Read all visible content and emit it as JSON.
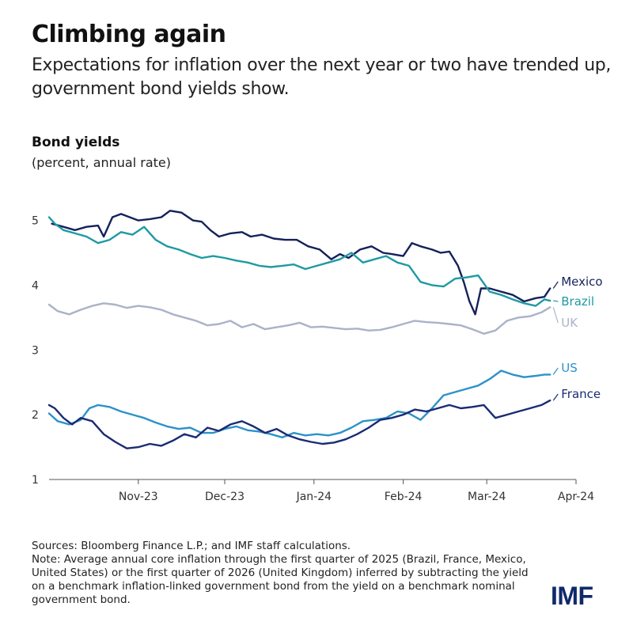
{
  "header": {
    "title": "Climbing again",
    "subtitle": "Expectations for inflation over the next year or two have trended up, government bond yields show."
  },
  "chart_data": {
    "type": "line",
    "title": "Bond yields",
    "subtitle": "(percent, annual rate)",
    "xlabel": "",
    "ylabel": "",
    "x_ticks": [
      "Nov-23",
      "Dec-23",
      "Jan-24",
      "Feb-24",
      "Mar-24",
      "Apr-24"
    ],
    "x_range": [
      "2023-10-01",
      "2024-04-01"
    ],
    "y_ticks": [
      1,
      2,
      3,
      4,
      5
    ],
    "ylim": [
      1,
      5.3
    ],
    "grid": false,
    "legend": "direct labels at right end of lines",
    "series": [
      {
        "name": "Mexico",
        "color": "#14215a",
        "x": [
          "2023-10-02",
          "2023-10-06",
          "2023-10-10",
          "2023-10-14",
          "2023-10-18",
          "2023-10-20",
          "2023-10-23",
          "2023-10-26",
          "2023-10-29",
          "2023-11-01",
          "2023-11-05",
          "2023-11-09",
          "2023-11-12",
          "2023-11-16",
          "2023-11-20",
          "2023-11-23",
          "2023-11-26",
          "2023-11-29",
          "2023-12-03",
          "2023-12-07",
          "2023-12-10",
          "2023-12-14",
          "2023-12-18",
          "2023-12-22",
          "2023-12-26",
          "2023-12-30",
          "2024-01-03",
          "2024-01-07",
          "2024-01-10",
          "2024-01-13",
          "2024-01-17",
          "2024-01-21",
          "2024-01-25",
          "2024-01-28",
          "2024-02-01",
          "2024-02-04",
          "2024-02-07",
          "2024-02-11",
          "2024-02-14",
          "2024-02-17",
          "2024-02-20",
          "2024-02-22",
          "2024-02-24",
          "2024-02-26",
          "2024-02-28",
          "2024-03-02",
          "2024-03-06",
          "2024-03-10",
          "2024-03-14",
          "2024-03-18",
          "2024-03-21",
          "2024-03-23"
        ],
        "values": [
          4.95,
          4.9,
          4.85,
          4.9,
          4.92,
          4.75,
          5.05,
          5.1,
          5.05,
          5.0,
          5.02,
          5.05,
          5.15,
          5.12,
          5.0,
          4.98,
          4.85,
          4.75,
          4.8,
          4.82,
          4.75,
          4.78,
          4.72,
          4.7,
          4.7,
          4.6,
          4.55,
          4.4,
          4.48,
          4.42,
          4.55,
          4.6,
          4.5,
          4.48,
          4.45,
          4.65,
          4.6,
          4.55,
          4.5,
          4.52,
          4.3,
          4.05,
          3.75,
          3.55,
          3.95,
          3.95,
          3.9,
          3.85,
          3.75,
          3.8,
          3.82,
          3.95
        ]
      },
      {
        "name": "Brazil",
        "color": "#1e9aa3",
        "x": [
          "2023-10-01",
          "2023-10-03",
          "2023-10-06",
          "2023-10-10",
          "2023-10-14",
          "2023-10-18",
          "2023-10-22",
          "2023-10-26",
          "2023-10-30",
          "2023-11-03",
          "2023-11-07",
          "2023-11-11",
          "2023-11-15",
          "2023-11-19",
          "2023-11-23",
          "2023-11-27",
          "2023-12-01",
          "2023-12-05",
          "2023-12-09",
          "2023-12-13",
          "2023-12-17",
          "2023-12-21",
          "2023-12-25",
          "2023-12-29",
          "2024-01-02",
          "2024-01-06",
          "2024-01-10",
          "2024-01-14",
          "2024-01-18",
          "2024-01-22",
          "2024-01-26",
          "2024-01-30",
          "2024-02-03",
          "2024-02-07",
          "2024-02-11",
          "2024-02-15",
          "2024-02-19",
          "2024-02-23",
          "2024-02-27",
          "2024-03-02",
          "2024-03-06",
          "2024-03-10",
          "2024-03-14",
          "2024-03-18",
          "2024-03-21",
          "2024-03-23"
        ],
        "values": [
          5.05,
          4.95,
          4.85,
          4.8,
          4.75,
          4.65,
          4.7,
          4.82,
          4.78,
          4.9,
          4.7,
          4.6,
          4.55,
          4.48,
          4.42,
          4.45,
          4.42,
          4.38,
          4.35,
          4.3,
          4.28,
          4.3,
          4.32,
          4.25,
          4.3,
          4.35,
          4.4,
          4.5,
          4.35,
          4.4,
          4.45,
          4.35,
          4.3,
          4.05,
          4.0,
          3.98,
          4.1,
          4.12,
          4.15,
          3.9,
          3.85,
          3.78,
          3.72,
          3.68,
          3.78,
          3.76
        ]
      },
      {
        "name": "UK",
        "color": "#aab2c8",
        "x": [
          "2023-10-01",
          "2023-10-04",
          "2023-10-08",
          "2023-10-12",
          "2023-10-16",
          "2023-10-20",
          "2023-10-24",
          "2023-10-28",
          "2023-11-01",
          "2023-11-05",
          "2023-11-09",
          "2023-11-13",
          "2023-11-17",
          "2023-11-21",
          "2023-11-25",
          "2023-11-29",
          "2023-12-03",
          "2023-12-07",
          "2023-12-11",
          "2023-12-15",
          "2023-12-19",
          "2023-12-23",
          "2023-12-27",
          "2023-12-31",
          "2024-01-04",
          "2024-01-08",
          "2024-01-12",
          "2024-01-16",
          "2024-01-20",
          "2024-01-24",
          "2024-01-28",
          "2024-02-01",
          "2024-02-05",
          "2024-02-09",
          "2024-02-13",
          "2024-02-17",
          "2024-02-21",
          "2024-02-25",
          "2024-02-29",
          "2024-03-04",
          "2024-03-08",
          "2024-03-12",
          "2024-03-16",
          "2024-03-20",
          "2024-03-23"
        ],
        "values": [
          3.7,
          3.6,
          3.55,
          3.62,
          3.68,
          3.72,
          3.7,
          3.65,
          3.68,
          3.66,
          3.62,
          3.55,
          3.5,
          3.45,
          3.38,
          3.4,
          3.45,
          3.35,
          3.4,
          3.32,
          3.35,
          3.38,
          3.42,
          3.35,
          3.36,
          3.34,
          3.32,
          3.33,
          3.3,
          3.31,
          3.35,
          3.4,
          3.45,
          3.43,
          3.42,
          3.4,
          3.38,
          3.32,
          3.25,
          3.3,
          3.45,
          3.5,
          3.52,
          3.58,
          3.66
        ]
      },
      {
        "name": "US",
        "color": "#2c92c9",
        "x": [
          "2023-10-01",
          "2023-10-04",
          "2023-10-08",
          "2023-10-12",
          "2023-10-15",
          "2023-10-18",
          "2023-10-22",
          "2023-10-26",
          "2023-10-30",
          "2023-11-03",
          "2023-11-07",
          "2023-11-11",
          "2023-11-15",
          "2023-11-19",
          "2023-11-23",
          "2023-11-27",
          "2023-12-01",
          "2023-12-05",
          "2023-12-09",
          "2023-12-13",
          "2023-12-17",
          "2023-12-21",
          "2023-12-25",
          "2023-12-29",
          "2024-01-02",
          "2024-01-06",
          "2024-01-10",
          "2024-01-14",
          "2024-01-18",
          "2024-01-22",
          "2024-01-26",
          "2024-01-30",
          "2024-02-03",
          "2024-02-07",
          "2024-02-11",
          "2024-02-15",
          "2024-02-19",
          "2024-02-23",
          "2024-02-27",
          "2024-03-02",
          "2024-03-06",
          "2024-03-10",
          "2024-03-14",
          "2024-03-18",
          "2024-03-21",
          "2024-03-23"
        ],
        "values": [
          2.02,
          1.9,
          1.85,
          1.92,
          2.1,
          2.15,
          2.12,
          2.05,
          2.0,
          1.95,
          1.88,
          1.82,
          1.78,
          1.8,
          1.72,
          1.72,
          1.78,
          1.82,
          1.76,
          1.74,
          1.7,
          1.65,
          1.72,
          1.68,
          1.7,
          1.68,
          1.72,
          1.8,
          1.9,
          1.92,
          1.95,
          2.05,
          2.02,
          1.92,
          2.1,
          2.3,
          2.35,
          2.4,
          2.45,
          2.55,
          2.68,
          2.62,
          2.58,
          2.6,
          2.62,
          2.62
        ]
      },
      {
        "name": "France",
        "color": "#1a2b73",
        "x": [
          "2023-10-01",
          "2023-10-03",
          "2023-10-06",
          "2023-10-09",
          "2023-10-12",
          "2023-10-16",
          "2023-10-20",
          "2023-10-24",
          "2023-10-28",
          "2023-11-01",
          "2023-11-05",
          "2023-11-09",
          "2023-11-13",
          "2023-11-17",
          "2023-11-21",
          "2023-11-25",
          "2023-11-29",
          "2023-12-03",
          "2023-12-07",
          "2023-12-11",
          "2023-12-15",
          "2023-12-19",
          "2023-12-23",
          "2023-12-27",
          "2023-12-31",
          "2024-01-04",
          "2024-01-08",
          "2024-01-12",
          "2024-01-16",
          "2024-01-20",
          "2024-01-24",
          "2024-01-28",
          "2024-02-01",
          "2024-02-05",
          "2024-02-09",
          "2024-02-13",
          "2024-02-17",
          "2024-02-21",
          "2024-02-25",
          "2024-02-29",
          "2024-03-04",
          "2024-03-08",
          "2024-03-12",
          "2024-03-16",
          "2024-03-20",
          "2024-03-23"
        ],
        "values": [
          2.15,
          2.1,
          1.95,
          1.85,
          1.95,
          1.9,
          1.7,
          1.58,
          1.48,
          1.5,
          1.55,
          1.52,
          1.6,
          1.7,
          1.65,
          1.8,
          1.75,
          1.85,
          1.9,
          1.82,
          1.72,
          1.78,
          1.68,
          1.62,
          1.58,
          1.55,
          1.57,
          1.62,
          1.7,
          1.8,
          1.92,
          1.95,
          2.0,
          2.08,
          2.05,
          2.1,
          2.15,
          2.1,
          2.12,
          2.15,
          1.95,
          2.0,
          2.05,
          2.1,
          2.15,
          2.22
        ]
      }
    ]
  },
  "footer": {
    "sources": "Sources: Bloomberg Finance L.P.; and IMF staff calculations.",
    "note": "Note: Average annual core inflation through the first quarter of 2025 (Brazil, France, Mexico, United States) or the first quarter of 2026 (United Kingdom) inferred by subtracting the yield on a benchmark inflation-linked government bond from the yield on a benchmark nominal government bond.",
    "logo": "IMF"
  }
}
